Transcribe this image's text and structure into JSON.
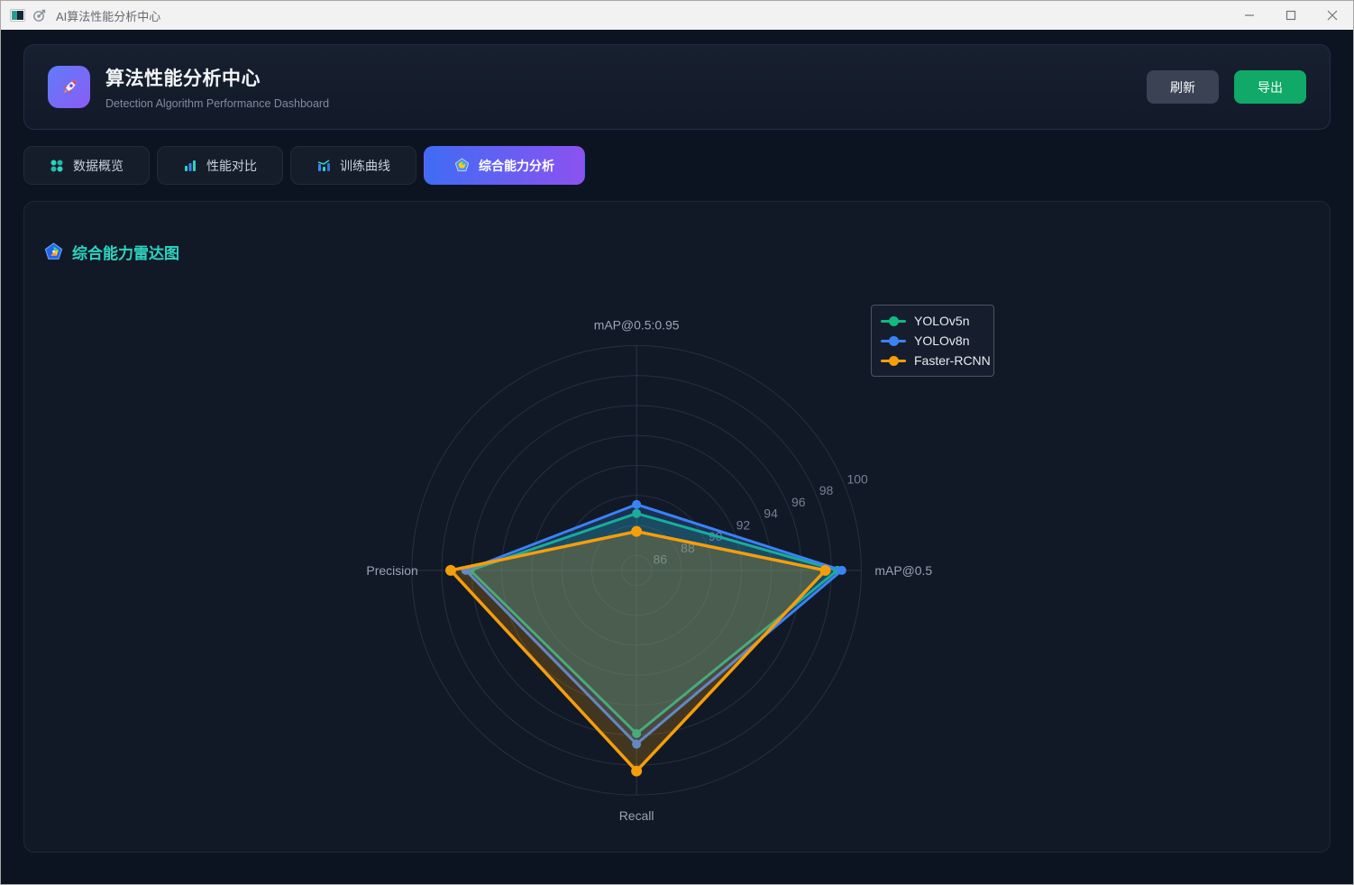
{
  "window": {
    "title": "AI算法性能分析中心"
  },
  "header": {
    "title": "算法性能分析中心",
    "subtitle": "Detection Algorithm Performance Dashboard",
    "refresh_label": "刷新",
    "export_label": "导出"
  },
  "tabs": [
    {
      "label": "数据概览",
      "active": false,
      "icon": "grid-dots-icon"
    },
    {
      "label": "性能对比",
      "active": false,
      "icon": "bar-chart-icon"
    },
    {
      "label": "训练曲线",
      "active": false,
      "icon": "line-chart-icon"
    },
    {
      "label": "综合能力分析",
      "active": true,
      "icon": "pentagon-radar-icon"
    }
  ],
  "panel": {
    "title": "综合能力雷达图"
  },
  "colors": {
    "accent_teal": "#2dd4bf",
    "export_green": "#10a968",
    "active_tab_gradient": [
      "#3f6cf4",
      "#8c52f0"
    ],
    "grid_line": "#27303f",
    "tick_label": "#768093",
    "axis_name": "#9aa4b5"
  },
  "chart_data": {
    "type": "radar",
    "grid_shape": "circle",
    "indicators": [
      "mAP@0.5:0.95",
      "mAP@0.5",
      "Recall",
      "Precision"
    ],
    "radial_axis": {
      "min": 85,
      "max": 100,
      "ticks": [
        86,
        88,
        90,
        92,
        94,
        96,
        98,
        100
      ],
      "tick_label_angle_deg": 22.5
    },
    "legend_position": "top-right",
    "series": [
      {
        "name": "YOLOv5n",
        "color": "#10b981",
        "values": [
          88.8,
          98.4,
          95.9,
          96.1
        ]
      },
      {
        "name": "YOLOv8n",
        "color": "#3b82f6",
        "values": [
          89.4,
          98.7,
          96.6,
          96.4
        ]
      },
      {
        "name": "Faster-RCNN",
        "color": "#f59e0b",
        "values": [
          87.6,
          97.6,
          98.4,
          97.4
        ]
      }
    ]
  }
}
